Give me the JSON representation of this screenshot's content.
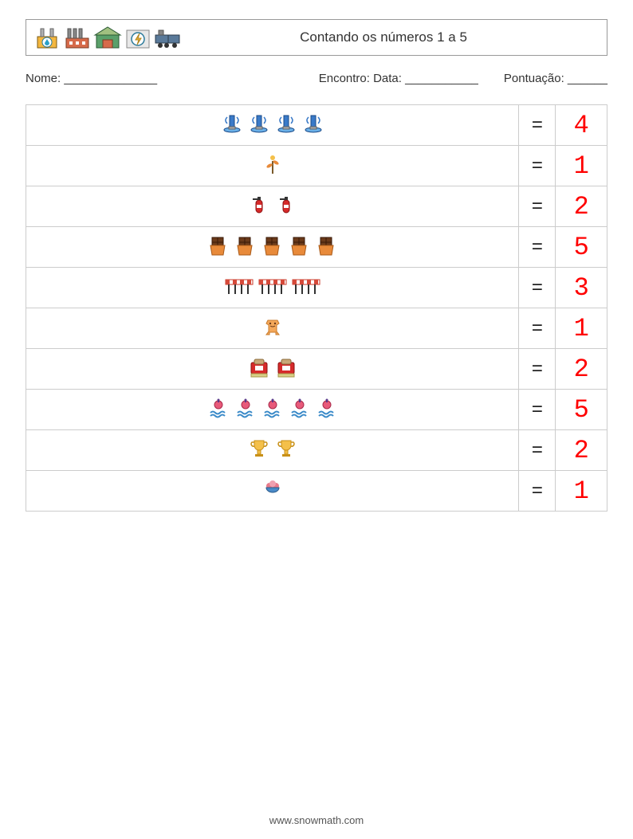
{
  "header": {
    "title": "Contando os números 1 a 5",
    "icons": [
      "oil-drop-factory",
      "factory",
      "warehouse",
      "power-plant",
      "train"
    ]
  },
  "labels": {
    "nome": "Nome: ______________",
    "encontro": "Encontro: Data: ___________",
    "pontuacao": "Pontuação: ______"
  },
  "answer_color": "#ff0000",
  "equals_sign": "=",
  "rows": [
    {
      "icon": "fountain",
      "count": 4,
      "answer": 4
    },
    {
      "icon": "plant",
      "count": 1,
      "answer": 1
    },
    {
      "icon": "extinguisher",
      "count": 2,
      "answer": 2
    },
    {
      "icon": "chocolate",
      "count": 5,
      "answer": 5
    },
    {
      "icon": "barrier",
      "count": 3,
      "answer": 3
    },
    {
      "icon": "onesie",
      "count": 1,
      "answer": 1
    },
    {
      "icon": "toaster",
      "count": 2,
      "answer": 2
    },
    {
      "icon": "buoy",
      "count": 5,
      "answer": 5
    },
    {
      "icon": "trophy",
      "count": 2,
      "answer": 2
    },
    {
      "icon": "icecream",
      "count": 1,
      "answer": 1
    }
  ],
  "footer": "www.snowmath.com",
  "colors": {
    "border": "#cccccc",
    "header_border": "#999999",
    "text": "#333333",
    "background": "#ffffff"
  }
}
